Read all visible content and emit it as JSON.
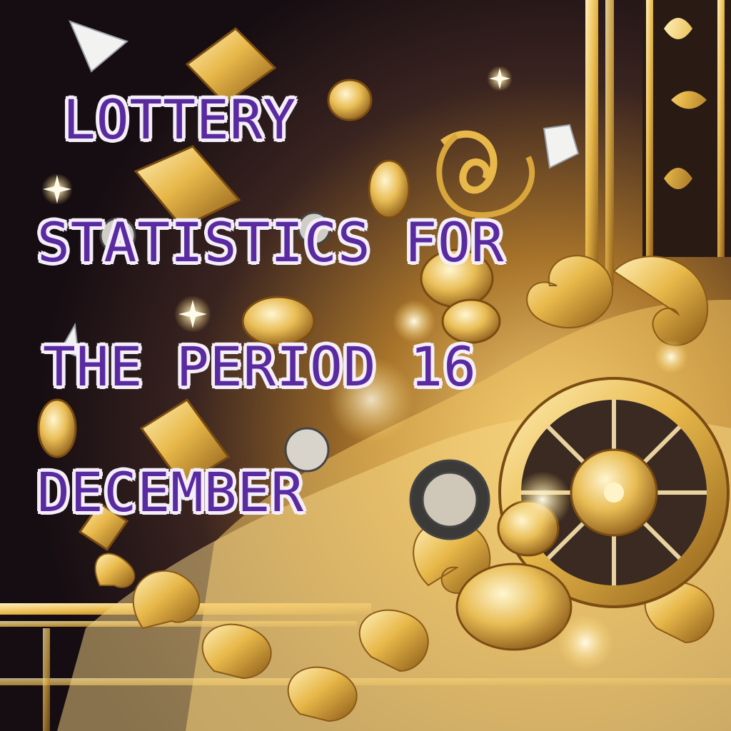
{
  "headline": {
    "line1": "LOTTERY",
    "line2": "STATISTICS FOR",
    "line3": "THE PERIOD 16",
    "line4": "DECEMBER"
  },
  "colors": {
    "text_fill": "#5a2aa0",
    "text_outline": "#f3eef8",
    "gold": "#e8b84a",
    "background": "#1a1014"
  },
  "icons": [
    "gold-coin-icon",
    "diamond-icon",
    "gold-card-icon",
    "roulette-wheel-icon",
    "sparkle-icon"
  ]
}
